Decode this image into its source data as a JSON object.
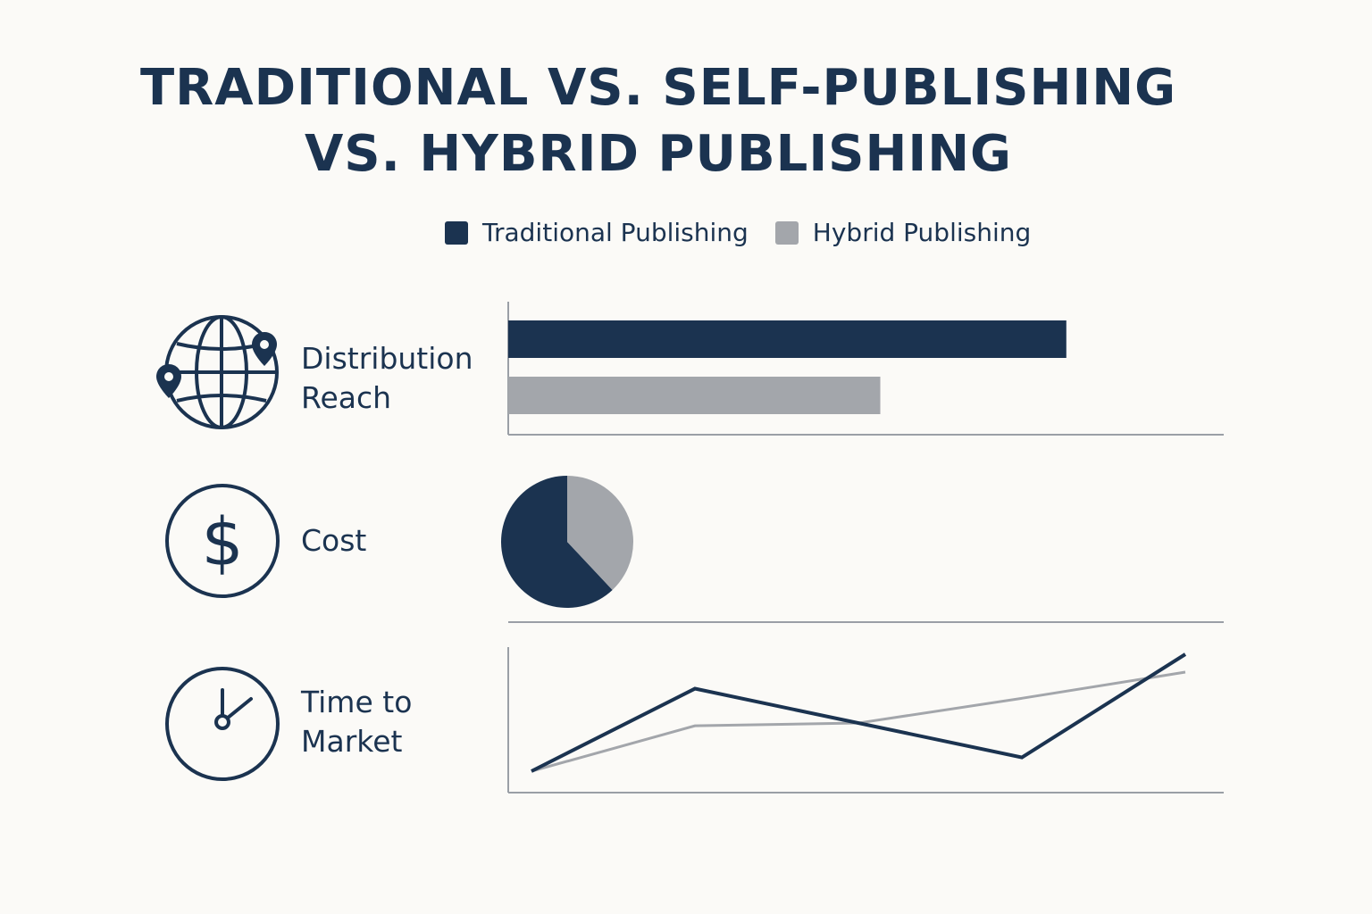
{
  "title_lines": [
    "TRADITIONAL VS. SELF-PUBLISHING",
    "VS. HYBRID PUBLISHING"
  ],
  "colors": {
    "traditional": "#1b3350",
    "hybrid": "#a3a6ab",
    "axis": "#9a9fa6",
    "text": "#1b3350"
  },
  "legend": [
    {
      "label": "Traditional Publishing",
      "color": "#1b3350"
    },
    {
      "label": "Hybrid Publishing",
      "color": "#a3a6ab"
    }
  ],
  "rows": [
    {
      "icon": "globe-with-pins-icon",
      "label_lines": [
        "Distribution",
        "Reach"
      ]
    },
    {
      "icon": "dollar-icon",
      "label_lines": [
        "Cost"
      ]
    },
    {
      "icon": "clock-icon",
      "label_lines": [
        "Time to",
        "Market"
      ]
    }
  ],
  "chart_data": [
    {
      "type": "bar",
      "orientation": "horizontal",
      "category": "Distribution Reach",
      "series": [
        {
          "name": "Traditional Publishing",
          "values": [
            78
          ]
        },
        {
          "name": "Hybrid Publishing",
          "values": [
            52
          ]
        }
      ],
      "xlim": [
        0,
        100
      ]
    },
    {
      "type": "pie",
      "category": "Cost",
      "series": [
        {
          "name": "Traditional Publishing",
          "values": [
            62
          ]
        },
        {
          "name": "Hybrid Publishing",
          "values": [
            38
          ]
        }
      ]
    },
    {
      "type": "line",
      "category": "Time to Market",
      "x": [
        0,
        1,
        2,
        3,
        4
      ],
      "series": [
        {
          "name": "Traditional Publishing",
          "values": [
            10,
            70,
            null,
            20,
            95
          ]
        },
        {
          "name": "Hybrid Publishing",
          "values": [
            10,
            43,
            45,
            63,
            82
          ]
        }
      ],
      "xlim": [
        0,
        4
      ],
      "ylim": [
        0,
        100
      ]
    }
  ]
}
